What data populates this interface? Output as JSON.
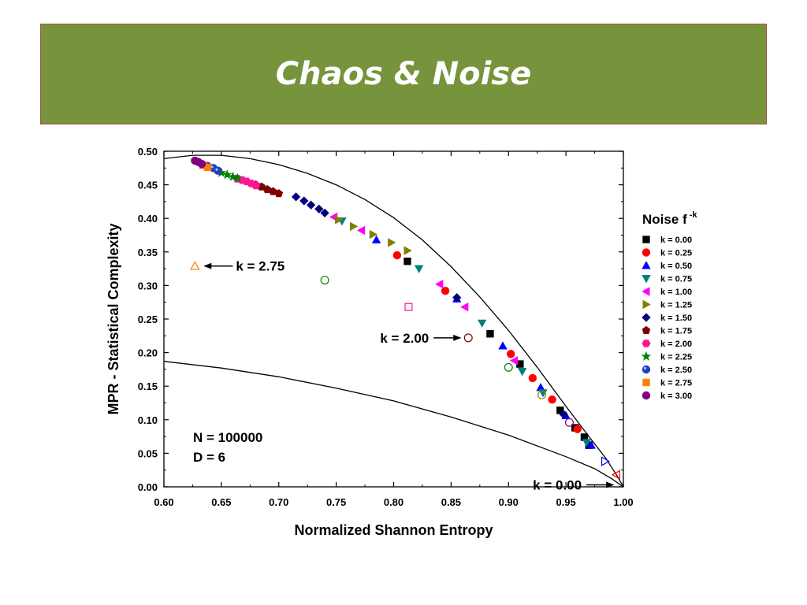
{
  "slide": {
    "title": "Chaos & Noise"
  },
  "colors": {
    "title_bg": "#77933c",
    "title_border": "#a0524d"
  },
  "chart_data": {
    "type": "scatter",
    "xlabel": "Normalized  Shannon  Entropy",
    "ylabel": "MPR - Statistical  Complexity",
    "xlim": [
      0.6,
      1.0
    ],
    "ylim": [
      0.0,
      0.5
    ],
    "xticks": [
      "0.60",
      "0.65",
      "0.70",
      "0.75",
      "0.80",
      "0.85",
      "0.90",
      "0.95",
      "1.00"
    ],
    "yticks": [
      "0.00",
      "0.05",
      "0.10",
      "0.15",
      "0.20",
      "0.25",
      "0.30",
      "0.35",
      "0.40",
      "0.45",
      "0.50"
    ],
    "legend_title": "Noise f",
    "legend_title_sup": "-k",
    "legend_position": "right",
    "info_lines": [
      "N = 100000",
      "D = 6"
    ],
    "annotations": [
      {
        "text": "k = 2.75",
        "x": 0.627,
        "y": 0.329,
        "side": "right"
      },
      {
        "text": "k = 2.00",
        "x": 0.865,
        "y": 0.222,
        "side": "left"
      },
      {
        "text": "k = 0.00",
        "x": 0.998,
        "y": 0.003,
        "side": "left"
      }
    ],
    "bounds": {
      "upper": {
        "x": [
          0.6,
          0.625,
          0.65,
          0.675,
          0.7,
          0.725,
          0.75,
          0.775,
          0.8,
          0.825,
          0.85,
          0.875,
          0.9,
          0.925,
          0.95,
          0.97,
          0.985,
          0.995,
          1.0
        ],
        "y": [
          0.489,
          0.494,
          0.494,
          0.489,
          0.48,
          0.467,
          0.45,
          0.428,
          0.401,
          0.368,
          0.328,
          0.283,
          0.233,
          0.178,
          0.12,
          0.075,
          0.042,
          0.015,
          0.0
        ]
      },
      "lower": {
        "x": [
          0.6,
          0.65,
          0.7,
          0.75,
          0.8,
          0.85,
          0.9,
          0.95,
          0.975,
          0.99,
          1.0
        ],
        "y": [
          0.187,
          0.177,
          0.164,
          0.147,
          0.128,
          0.104,
          0.077,
          0.045,
          0.027,
          0.012,
          0.0
        ]
      }
    },
    "series": [
      {
        "name": "k = 0.00",
        "marker": "square",
        "color": "#000000",
        "x": [
          0.812,
          0.884,
          0.91,
          0.945,
          0.958,
          0.966,
          0.97
        ],
        "y": [
          0.336,
          0.228,
          0.183,
          0.114,
          0.088,
          0.074,
          0.062
        ],
        "open": {
          "x": [],
          "y": []
        }
      },
      {
        "name": "k = 0.25",
        "marker": "circle",
        "color": "#ff0000",
        "x": [
          0.803,
          0.845,
          0.902,
          0.921,
          0.938,
          0.96
        ],
        "y": [
          0.345,
          0.292,
          0.198,
          0.162,
          0.13,
          0.086
        ],
        "open": {
          "x": [
            0.994
          ],
          "y": [
            0.018
          ],
          "marker": "triangle-left"
        }
      },
      {
        "name": "k = 0.50",
        "marker": "triangle-up",
        "color": "#0000ff",
        "x": [
          0.785,
          0.855,
          0.895,
          0.928,
          0.95,
          0.972
        ],
        "y": [
          0.368,
          0.28,
          0.21,
          0.148,
          0.106,
          0.062
        ],
        "open": {
          "x": [
            0.984
          ],
          "y": [
            0.038
          ],
          "marker": "triangle-right"
        }
      },
      {
        "name": "k = 0.75",
        "marker": "triangle-down",
        "color": "#007f7f",
        "x": [
          0.755,
          0.822,
          0.877,
          0.912,
          0.93,
          0.968
        ],
        "y": [
          0.396,
          0.325,
          0.244,
          0.172,
          0.14,
          0.066
        ],
        "open": {
          "x": [],
          "y": []
        }
      },
      {
        "name": "k = 1.00",
        "marker": "triangle-left",
        "color": "#ff00ff",
        "x": [
          0.748,
          0.772,
          0.84,
          0.862,
          0.905
        ],
        "y": [
          0.402,
          0.382,
          0.302,
          0.268,
          0.188
        ],
        "open": {
          "x": [],
          "y": []
        }
      },
      {
        "name": "k = 1.25",
        "marker": "triangle-right",
        "color": "#808000",
        "x": [
          0.752,
          0.765,
          0.782,
          0.798,
          0.812
        ],
        "y": [
          0.398,
          0.388,
          0.376,
          0.364,
          0.352
        ],
        "open": {
          "x": [
            0.929
          ],
          "y": [
            0.137
          ],
          "marker": "circle"
        }
      },
      {
        "name": "k = 1.50",
        "marker": "diamond",
        "color": "#00007f",
        "x": [
          0.715,
          0.722,
          0.728,
          0.735,
          0.74,
          0.855,
          0.948
        ],
        "y": [
          0.432,
          0.426,
          0.42,
          0.414,
          0.408,
          0.282,
          0.108
        ],
        "open": {
          "x": [],
          "y": []
        }
      },
      {
        "name": "k = 1.75",
        "marker": "pentagon",
        "color": "#7f0000",
        "x": [
          0.68,
          0.685,
          0.69,
          0.695,
          0.7
        ],
        "y": [
          0.45,
          0.447,
          0.443,
          0.44,
          0.437
        ],
        "open": {
          "x": [
            0.865
          ],
          "y": [
            0.222
          ],
          "marker": "circle"
        }
      },
      {
        "name": "k = 2.00",
        "marker": "hexagon",
        "color": "#ff1493",
        "x": [
          0.664,
          0.668,
          0.672,
          0.676,
          0.68
        ],
        "y": [
          0.459,
          0.457,
          0.455,
          0.452,
          0.449
        ],
        "open": {
          "x": [
            0.813
          ],
          "y": [
            0.268
          ],
          "marker": "square"
        }
      },
      {
        "name": "k = 2.25",
        "marker": "star",
        "color": "#008000",
        "x": [
          0.65,
          0.655,
          0.66,
          0.664
        ],
        "y": [
          0.468,
          0.465,
          0.462,
          0.46
        ],
        "open": {
          "x": [
            0.74,
            0.9
          ],
          "y": [
            0.308,
            0.178
          ],
          "marker": "circle"
        }
      },
      {
        "name": "k = 2.50",
        "marker": "ball",
        "color": "#1f3fbf",
        "x": [
          0.638,
          0.643,
          0.647
        ],
        "y": [
          0.478,
          0.475,
          0.471
        ],
        "open": {
          "x": [],
          "y": []
        }
      },
      {
        "name": "k = 2.75",
        "marker": "square",
        "color": "#ff8000",
        "x": [
          0.634,
          0.638
        ],
        "y": [
          0.479,
          0.476
        ],
        "open": {
          "x": [
            0.627
          ],
          "y": [
            0.329
          ],
          "marker": "triangle-up"
        }
      },
      {
        "name": "k = 3.00",
        "marker": "circle",
        "color": "#800080",
        "x": [
          0.627,
          0.63,
          0.633
        ],
        "y": [
          0.486,
          0.484,
          0.481
        ],
        "open": {
          "x": [
            0.953
          ],
          "y": [
            0.096
          ],
          "marker": "circle"
        }
      }
    ]
  }
}
